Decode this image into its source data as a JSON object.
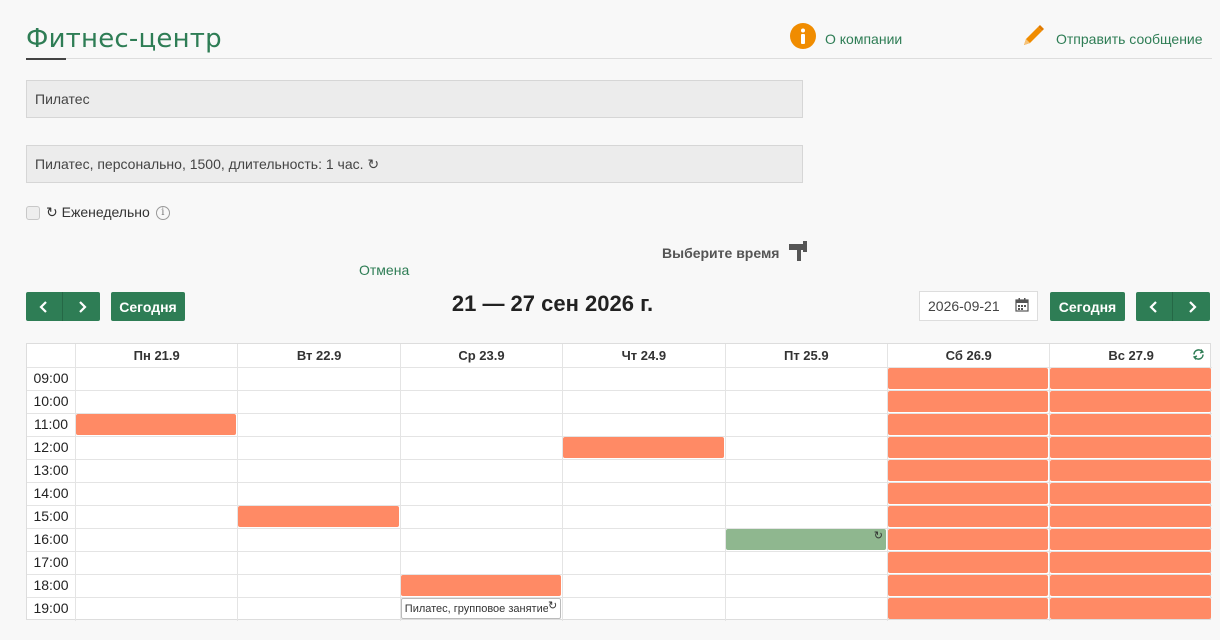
{
  "header": {
    "title": "Фитнес-центр",
    "about_label": "О компании",
    "message_label": "Отправить сообщение"
  },
  "form": {
    "service_value": "Пилатес",
    "option_value": "Пилатес, персонально, 1500, длительность: 1 час. ↻",
    "weekly_label": "↻ Еженедельно",
    "weekly_checked": false,
    "choose_time_label": "Выберите время",
    "cancel_label": "Отмена"
  },
  "toolbar": {
    "prev_icon": "chevron-left-icon",
    "next_icon": "chevron-right-icon",
    "today_label": "Сегодня",
    "range_title": "21 — 27 сен 2026 г.",
    "date_value": "2026-09-21"
  },
  "calendar": {
    "days": [
      "Пн 21.9",
      "Вт 22.9",
      "Ср 23.9",
      "Чт 24.9",
      "Пт 25.9",
      "Сб 26.9",
      "Вс 27.9"
    ],
    "times": [
      "09:00",
      "10:00",
      "11:00",
      "12:00",
      "13:00",
      "14:00",
      "15:00",
      "16:00",
      "17:00",
      "18:00",
      "19:00"
    ],
    "events": [
      {
        "day": 0,
        "slot": 2,
        "type": "busy"
      },
      {
        "day": 1,
        "slot": 6,
        "type": "busy"
      },
      {
        "day": 2,
        "slot": 9,
        "type": "busy"
      },
      {
        "day": 3,
        "slot": 3,
        "type": "busy"
      },
      {
        "day": 4,
        "slot": 7,
        "type": "selected",
        "repeat": true
      }
    ],
    "blocked_days": [
      5,
      6
    ],
    "tooltip": {
      "day": 2,
      "slot": 10,
      "text": "Пилатес, групповое занятие",
      "repeat": true
    },
    "colors": {
      "busy": "#ff8a65",
      "selected": "#8fb78f",
      "accent": "#2e7d55"
    }
  }
}
